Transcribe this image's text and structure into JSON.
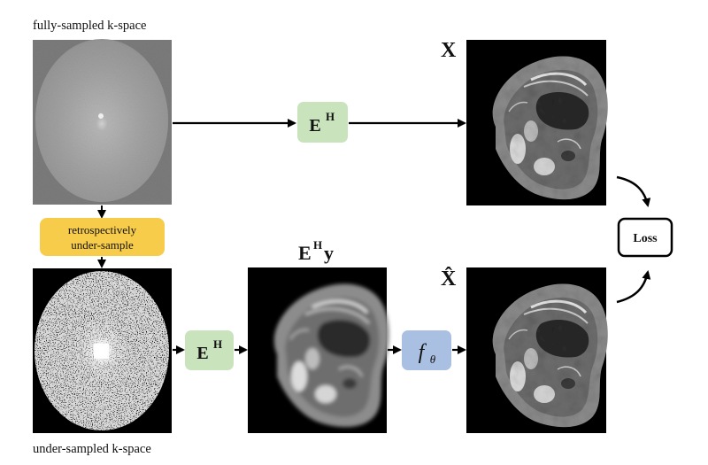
{
  "captions": {
    "full_kspace": "fully-sampled k-space",
    "under_kspace": "under-sampled k-space"
  },
  "labels": {
    "x": "X",
    "x_hat": "X̂",
    "ehy_base": "E",
    "ehy_sup": "H",
    "ehy_tail": "y"
  },
  "operators": {
    "eh_base": "E",
    "eh_sup": "H",
    "f_theta_base": "f",
    "f_theta_sub": "θ",
    "retro_line1": "retrospectively",
    "retro_line2": "under-sample",
    "loss": "Loss"
  },
  "colors": {
    "green_box": "#c9e3bd",
    "yellow_box": "#f7cc4a",
    "blue_box": "#a9c0e3",
    "arrow": "#000000"
  }
}
